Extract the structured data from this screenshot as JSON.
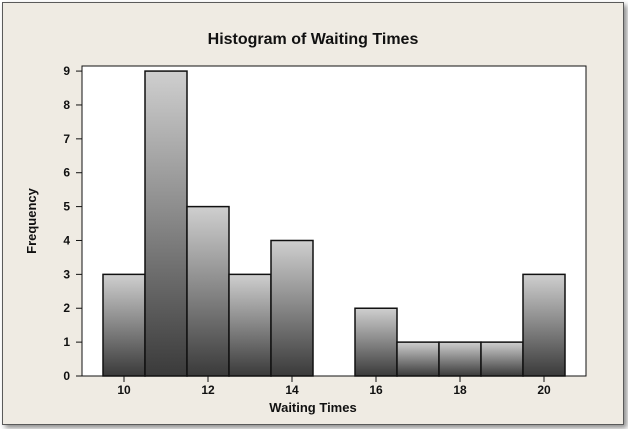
{
  "chart_data": {
    "type": "bar",
    "title": "Histogram of Waiting Times",
    "xlabel": "Waiting Times",
    "ylabel": "Frequency",
    "bin_width": 1,
    "bins": [
      {
        "start": 10,
        "end": 11,
        "count": 3
      },
      {
        "start": 11,
        "end": 12,
        "count": 9
      },
      {
        "start": 12,
        "end": 13,
        "count": 5
      },
      {
        "start": 13,
        "end": 14,
        "count": 3
      },
      {
        "start": 14,
        "end": 15,
        "count": 4
      },
      {
        "start": 15,
        "end": 16,
        "count": 0
      },
      {
        "start": 16,
        "end": 17,
        "count": 2
      },
      {
        "start": 17,
        "end": 18,
        "count": 1
      },
      {
        "start": 18,
        "end": 19,
        "count": 1
      },
      {
        "start": 19,
        "end": 20,
        "count": 1
      },
      {
        "start": 20,
        "end": 21,
        "count": 3
      }
    ],
    "xticks": [
      10,
      12,
      14,
      16,
      18,
      20
    ],
    "yticks": [
      0,
      1,
      2,
      3,
      4,
      5,
      6,
      7,
      8,
      9
    ],
    "xlim": [
      9.5,
      21.5
    ],
    "ylim": [
      0,
      9.15
    ],
    "grid": false,
    "colors": {
      "bar_light": "#cfcfcf",
      "bar_dark": "#3a3a3a",
      "frame": "#efebe3",
      "plot_bg": "#ffffff"
    }
  }
}
